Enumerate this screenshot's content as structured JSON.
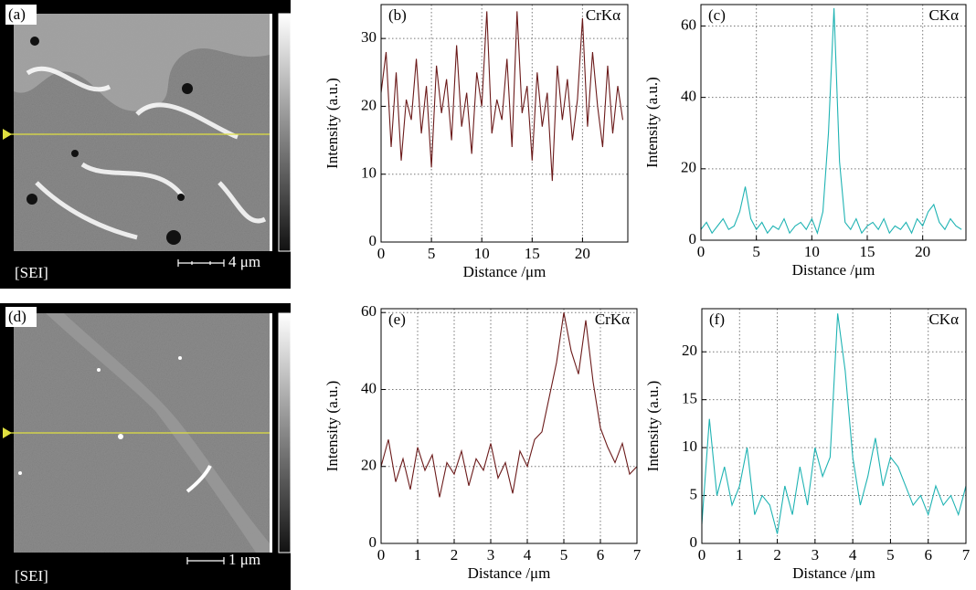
{
  "images": [
    {
      "label": "(a)",
      "mode": "[SEI]",
      "scale": "4 μm"
    },
    {
      "label": "(d)",
      "mode": "[SEI]",
      "scale": "1 μm"
    }
  ],
  "chart_data": [
    {
      "type": "line",
      "label": "(b)",
      "x_label": "Distance /μm",
      "y_label": "Intensity (a.u.)",
      "x": [
        0,
        0.5,
        1,
        1.5,
        2,
        2.5,
        3,
        3.5,
        4,
        4.5,
        5,
        5.5,
        6,
        6.5,
        7,
        7.5,
        8,
        8.5,
        9,
        9.5,
        10,
        10.5,
        11,
        11.5,
        12,
        12.5,
        13,
        13.5,
        14,
        14.5,
        15,
        15.5,
        16,
        16.5,
        17,
        17.5,
        18,
        18.5,
        19,
        19.5,
        20,
        20.5,
        21,
        21.5,
        22,
        22.5,
        23,
        23.5,
        24
      ],
      "series": [
        {
          "name": "CrKα",
          "color": "#6b1a1a",
          "values": [
            22,
            28,
            14,
            25,
            12,
            21,
            18,
            27,
            16,
            23,
            11,
            26,
            19,
            24,
            15,
            29,
            17,
            22,
            13,
            25,
            20,
            34,
            16,
            21,
            18,
            27,
            14,
            34,
            19,
            23,
            12,
            25,
            17,
            22,
            9,
            26,
            18,
            24,
            15,
            21,
            33,
            17,
            28,
            20,
            14,
            26,
            16,
            23,
            18
          ]
        }
      ],
      "xlim": [
        0,
        24.5
      ],
      "ylim": [
        0,
        35
      ],
      "xticks": [
        0,
        5,
        10,
        15,
        20
      ],
      "yticks": [
        0,
        10,
        20,
        30
      ],
      "grid": true
    },
    {
      "type": "line",
      "label": "(c)",
      "x_label": "Distance /μm",
      "y_label": "Intensity (a.u.)",
      "x": [
        0,
        0.5,
        1,
        1.5,
        2,
        2.5,
        3,
        3.5,
        4,
        4.5,
        5,
        5.5,
        6,
        6.5,
        7,
        7.5,
        8,
        8.5,
        9,
        9.5,
        10,
        10.5,
        11,
        11.5,
        12,
        12.5,
        13,
        13.5,
        14,
        14.5,
        15,
        15.5,
        16,
        16.5,
        17,
        17.5,
        18,
        18.5,
        19,
        19.5,
        20,
        20.5,
        21,
        21.5,
        22,
        22.5,
        23,
        23.5
      ],
      "series": [
        {
          "name": "CKα",
          "color": "#1fb3b3",
          "values": [
            3,
            5,
            2,
            4,
            6,
            3,
            4,
            8,
            15,
            6,
            3,
            5,
            2,
            4,
            3,
            6,
            2,
            4,
            5,
            3,
            6,
            2,
            8,
            30,
            65,
            22,
            5,
            3,
            6,
            2,
            4,
            5,
            3,
            6,
            2,
            4,
            3,
            5,
            2,
            6,
            4,
            8,
            10,
            5,
            3,
            6,
            4,
            3
          ]
        }
      ],
      "xlim": [
        0,
        23.9
      ],
      "ylim": [
        0,
        66
      ],
      "xticks": [
        0,
        5,
        10,
        15,
        20
      ],
      "yticks": [
        0,
        20,
        40,
        60
      ],
      "grid": true
    },
    {
      "type": "line",
      "label": "(e)",
      "x_label": "Distance /μm",
      "y_label": "Intensity (a.u.)",
      "x": [
        0,
        0.2,
        0.4,
        0.6,
        0.8,
        1,
        1.2,
        1.4,
        1.6,
        1.8,
        2,
        2.2,
        2.4,
        2.6,
        2.8,
        3,
        3.2,
        3.4,
        3.6,
        3.8,
        4,
        4.2,
        4.4,
        4.6,
        4.8,
        5,
        5.2,
        5.4,
        5.6,
        5.8,
        6,
        6.2,
        6.4,
        6.6,
        6.8,
        7
      ],
      "series": [
        {
          "name": "CrKα",
          "color": "#6b1a1a",
          "values": [
            20,
            27,
            16,
            22,
            14,
            25,
            19,
            23,
            12,
            21,
            18,
            24,
            15,
            22,
            19,
            26,
            17,
            21,
            13,
            24,
            20,
            27,
            29,
            38,
            47,
            60,
            50,
            44,
            58,
            42,
            30,
            25,
            21,
            26,
            18,
            20
          ]
        }
      ],
      "xlim": [
        0,
        7
      ],
      "ylim": [
        0,
        61
      ],
      "xticks": [
        0,
        1,
        2,
        3,
        4,
        5,
        6,
        7
      ],
      "yticks": [
        0,
        20,
        40,
        60
      ],
      "grid": true
    },
    {
      "type": "line",
      "label": "(f)",
      "x_label": "Distance /μm",
      "y_label": "Intensity (a.u.)",
      "x": [
        0,
        0.2,
        0.4,
        0.6,
        0.8,
        1,
        1.2,
        1.4,
        1.6,
        1.8,
        2,
        2.2,
        2.4,
        2.6,
        2.8,
        3,
        3.2,
        3.4,
        3.6,
        3.8,
        4,
        4.2,
        4.4,
        4.6,
        4.8,
        5,
        5.2,
        5.4,
        5.6,
        5.8,
        6,
        6.2,
        6.4,
        6.6,
        6.8,
        7
      ],
      "series": [
        {
          "name": "CKα",
          "color": "#1fb3b3",
          "values": [
            2,
            13,
            5,
            8,
            4,
            6,
            10,
            3,
            5,
            4,
            1,
            6,
            3,
            8,
            4,
            10,
            7,
            9,
            24,
            18,
            9,
            4,
            7,
            11,
            6,
            9,
            8,
            6,
            4,
            5,
            3,
            6,
            4,
            5,
            3,
            6
          ]
        }
      ],
      "xlim": [
        0,
        7
      ],
      "ylim": [
        0,
        24.5
      ],
      "xticks": [
        0,
        1,
        2,
        3,
        4,
        5,
        6,
        7
      ],
      "yticks": [
        0,
        5,
        10,
        15,
        20
      ],
      "grid": true
    }
  ]
}
